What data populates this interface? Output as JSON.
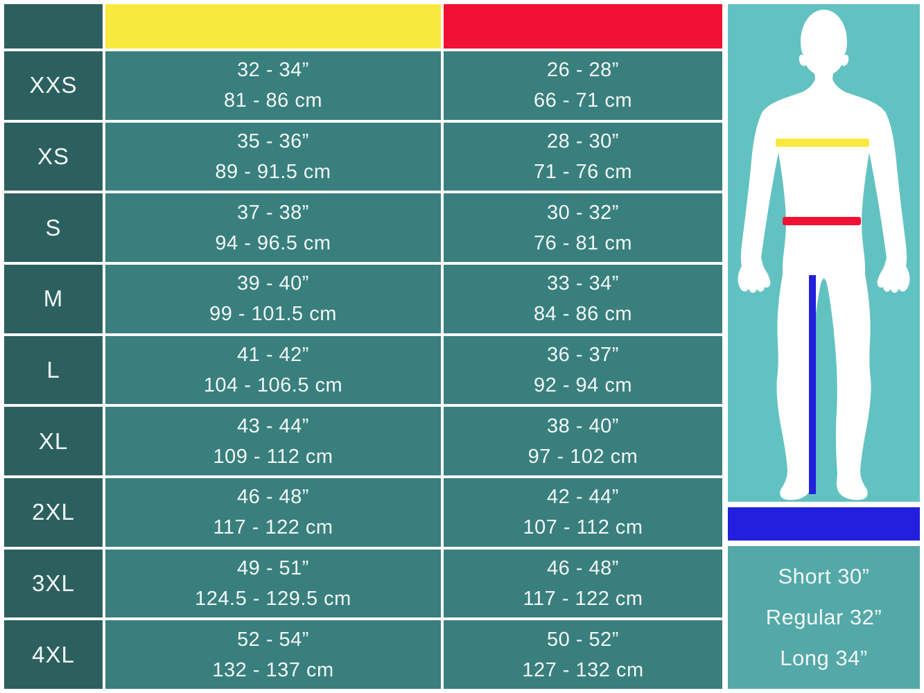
{
  "colors": {
    "table_cell_teal": "#397f7d",
    "table_label_teal": "#2c605f",
    "chest_yellow": "#f8e93e",
    "waist_red": "#f11134",
    "figure_panel_teal": "#62c2c1",
    "inseam_blue": "#2320dd",
    "legend_panel_teal": "#54a8a8",
    "text_white": "#f2f8f7",
    "body_silhouette_white": "#ffffff"
  },
  "chart_data": {
    "type": "table",
    "title": "",
    "columns": [
      {
        "id": "size",
        "header_text": "",
        "header_color": "#2c605f"
      },
      {
        "id": "chest",
        "header_text": "",
        "header_color": "#f8e93e"
      },
      {
        "id": "waist",
        "header_text": "",
        "header_color": "#f11134"
      }
    ],
    "rows": [
      {
        "size": "XXS",
        "chest_in": "32 - 34”",
        "chest_cm": "81 - 86 cm",
        "waist_in": "26 - 28”",
        "waist_cm": "66 - 71 cm"
      },
      {
        "size": "XS",
        "chest_in": "35 - 36”",
        "chest_cm": "89 - 91.5 cm",
        "waist_in": "28 - 30”",
        "waist_cm": "71 - 76 cm"
      },
      {
        "size": "S",
        "chest_in": "37 - 38”",
        "chest_cm": "94 - 96.5 cm",
        "waist_in": "30 - 32”",
        "waist_cm": "76 - 81 cm"
      },
      {
        "size": "M",
        "chest_in": "39 - 40”",
        "chest_cm": "99 - 101.5 cm",
        "waist_in": "33 - 34”",
        "waist_cm": "84 - 86 cm"
      },
      {
        "size": "L",
        "chest_in": "41 - 42”",
        "chest_cm": "104 - 106.5 cm",
        "waist_in": "36 - 37”",
        "waist_cm": "92 - 94 cm"
      },
      {
        "size": "XL",
        "chest_in": "43 - 44”",
        "chest_cm": "109 - 112 cm",
        "waist_in": "38 - 40”",
        "waist_cm": "97 - 102 cm"
      },
      {
        "size": "2XL",
        "chest_in": "46 - 48”",
        "chest_cm": "117 - 122 cm",
        "waist_in": "42 - 44”",
        "waist_cm": "107 - 112 cm"
      },
      {
        "size": "3XL",
        "chest_in": "49 - 51”",
        "chest_cm": "124.5 - 129.5 cm",
        "waist_in": "46 - 48”",
        "waist_cm": "117 - 122 cm"
      },
      {
        "size": "4XL",
        "chest_in": "52 - 54”",
        "chest_cm": "132 - 137 cm",
        "waist_in": "50 - 52”",
        "waist_cm": "127 - 132 cm"
      }
    ],
    "legend_lines": [
      "Short 30”",
      "Regular 32”",
      "Long 34”"
    ]
  }
}
